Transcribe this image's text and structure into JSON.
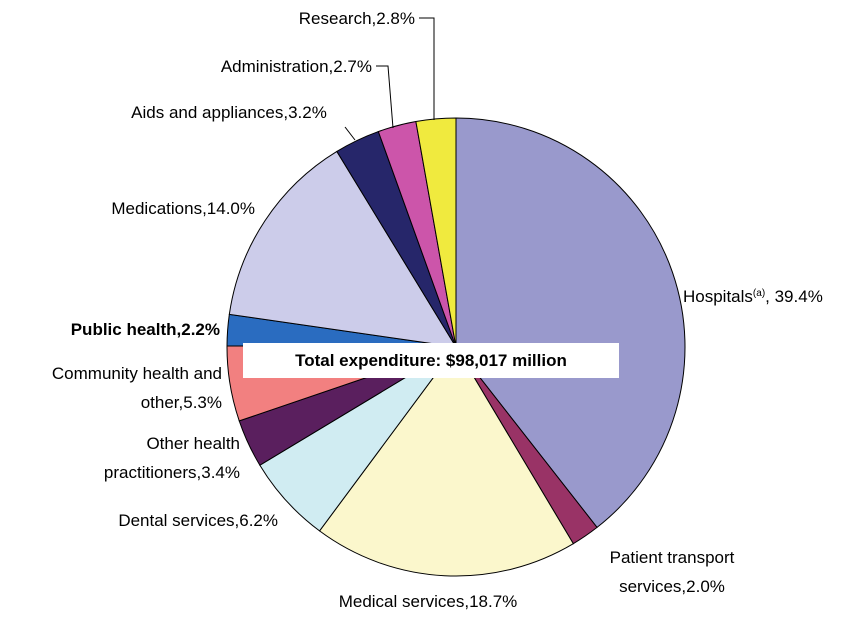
{
  "chart_data": {
    "type": "pie",
    "center_label": "Total expenditure: $98,017 million",
    "categories": [
      "Hospitals",
      "Patient transport\nservices,",
      "Medical services,",
      "Dental services,",
      "Other health\npractitioners,",
      "Community health and\nother,",
      "Public health,",
      "Medications,",
      "Aids and appliances,",
      "Administration,",
      "Research,"
    ],
    "superscripts": [
      "(a)",
      null,
      null,
      null,
      null,
      null,
      null,
      null,
      null,
      null,
      null
    ],
    "values": [
      39.4,
      2.0,
      18.7,
      6.2,
      3.4,
      5.3,
      2.2,
      14.0,
      3.2,
      2.7,
      2.8
    ],
    "value_labels": [
      ", 39.4%",
      "2.0%",
      "18.7%",
      "6.2%",
      "3.4%",
      "5.3%",
      "2.2%",
      "14.0%",
      "3.2%",
      "2.7%",
      "2.8%"
    ],
    "colors": [
      "#9999cc",
      "#993366",
      "#fbf7cc",
      "#d0ecf2",
      "#5a1f5e",
      "#f28080",
      "#2a6cc0",
      "#ccccea",
      "#26266a",
      "#cc55aa",
      "#f0ea3e"
    ],
    "bold": [
      false,
      false,
      false,
      false,
      false,
      false,
      true,
      false,
      false,
      false,
      false
    ]
  }
}
